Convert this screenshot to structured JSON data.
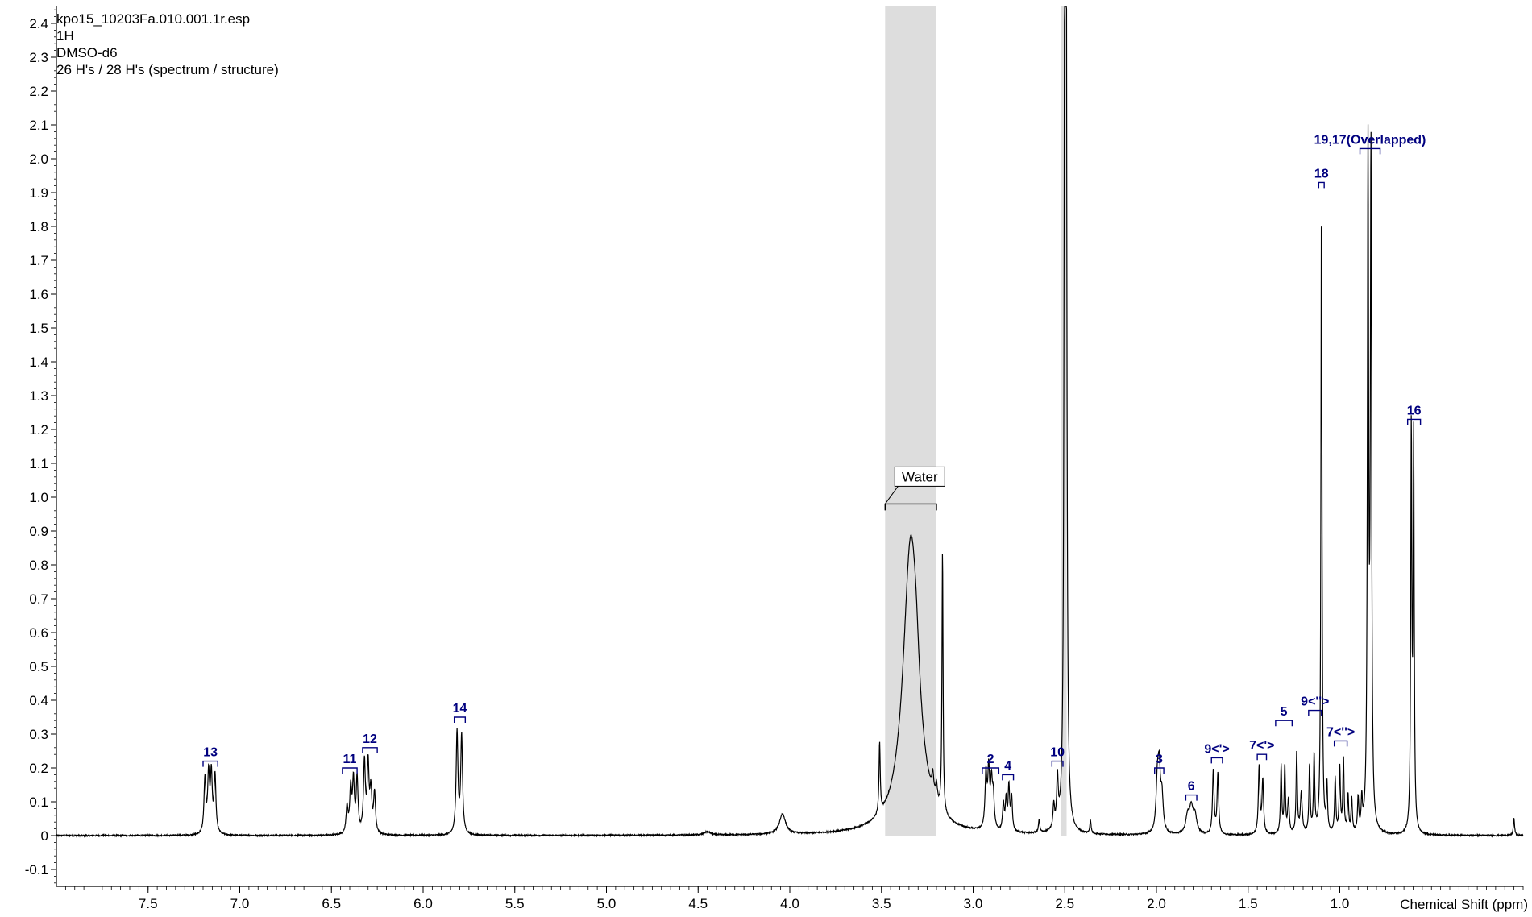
{
  "info": {
    "lines": [
      "kpo15_10203Fa.010.001.1r.esp",
      "1H",
      "DMSO-d6",
      "26 H's / 28 H's (spectrum / structure)"
    ]
  },
  "colors": {
    "spectrum": "#000000",
    "labels": "#00007f",
    "region": "#dddddd",
    "axis": "#000000"
  },
  "chart_data": {
    "type": "line",
    "title": "",
    "xlabel": "Chemical Shift (ppm)",
    "ylabel": "",
    "x_reversed": true,
    "xlim": [
      8.0,
      0.0
    ],
    "ylim": [
      -0.15,
      2.45
    ],
    "x_ticks": [
      "7.5",
      "7.0",
      "6.5",
      "6.0",
      "5.5",
      "5.0",
      "4.5",
      "4.0",
      "3.5",
      "3.0",
      "2.5",
      "2.0",
      "1.5",
      "1.0"
    ],
    "y_ticks": [
      "-0.1",
      "0",
      "0.1",
      "0.2",
      "0.3",
      "0.4",
      "0.5",
      "0.6",
      "0.7",
      "0.8",
      "0.9",
      "1.0",
      "1.1",
      "1.2",
      "1.3",
      "1.4",
      "1.5",
      "1.6",
      "1.7",
      "1.8",
      "1.9",
      "2.0",
      "2.1",
      "2.2",
      "2.3",
      "2.4"
    ],
    "shaded_regions": [
      {
        "from": 3.48,
        "to": 3.2
      },
      {
        "from": 2.52,
        "to": 2.49
      }
    ],
    "peaks": [
      {
        "x": 7.19,
        "y": 0.16,
        "w": 0.006
      },
      {
        "x": 7.17,
        "y": 0.17,
        "w": 0.006
      },
      {
        "x": 7.155,
        "y": 0.17,
        "w": 0.006
      },
      {
        "x": 7.135,
        "y": 0.17,
        "w": 0.006
      },
      {
        "x": 6.415,
        "y": 0.08,
        "w": 0.006
      },
      {
        "x": 6.395,
        "y": 0.13,
        "w": 0.006
      },
      {
        "x": 6.38,
        "y": 0.15,
        "w": 0.006
      },
      {
        "x": 6.36,
        "y": 0.16,
        "w": 0.006
      },
      {
        "x": 6.32,
        "y": 0.21,
        "w": 0.006
      },
      {
        "x": 6.3,
        "y": 0.2,
        "w": 0.006
      },
      {
        "x": 6.285,
        "y": 0.12,
        "w": 0.006
      },
      {
        "x": 6.265,
        "y": 0.12,
        "w": 0.006
      },
      {
        "x": 5.815,
        "y": 0.3,
        "w": 0.006
      },
      {
        "x": 5.79,
        "y": 0.29,
        "w": 0.006
      },
      {
        "x": 4.45,
        "y": 0.01,
        "w": 0.02
      },
      {
        "x": 4.04,
        "y": 0.06,
        "w": 0.02
      },
      {
        "x": 3.51,
        "y": 0.21,
        "w": 0.004
      },
      {
        "x": 3.34,
        "y": 0.86,
        "w": 0.05
      },
      {
        "x": 3.31,
        "y": 0.08,
        "w": 0.02
      },
      {
        "x": 3.22,
        "y": 0.06,
        "w": 0.006
      },
      {
        "x": 3.2,
        "y": 0.05,
        "w": 0.006
      },
      {
        "x": 3.167,
        "y": 0.77,
        "w": 0.0035
      },
      {
        "x": 2.93,
        "y": 0.16,
        "w": 0.006
      },
      {
        "x": 2.915,
        "y": 0.17,
        "w": 0.006
      },
      {
        "x": 2.9,
        "y": 0.13,
        "w": 0.006
      },
      {
        "x": 2.89,
        "y": 0.09,
        "w": 0.006
      },
      {
        "x": 2.835,
        "y": 0.08,
        "w": 0.005
      },
      {
        "x": 2.82,
        "y": 0.09,
        "w": 0.005
      },
      {
        "x": 2.805,
        "y": 0.13,
        "w": 0.005
      },
      {
        "x": 2.79,
        "y": 0.1,
        "w": 0.005
      },
      {
        "x": 2.64,
        "y": 0.04,
        "w": 0.004
      },
      {
        "x": 2.56,
        "y": 0.07,
        "w": 0.005
      },
      {
        "x": 2.54,
        "y": 0.14,
        "w": 0.005
      },
      {
        "x": 2.5,
        "y": 2.6,
        "w": 0.0045
      },
      {
        "x": 2.492,
        "y": 2.3,
        "w": 0.004
      },
      {
        "x": 2.36,
        "y": 0.04,
        "w": 0.004
      },
      {
        "x": 1.995,
        "y": 0.14,
        "w": 0.008
      },
      {
        "x": 1.985,
        "y": 0.17,
        "w": 0.008
      },
      {
        "x": 1.97,
        "y": 0.1,
        "w": 0.008
      },
      {
        "x": 1.83,
        "y": 0.05,
        "w": 0.012
      },
      {
        "x": 1.81,
        "y": 0.07,
        "w": 0.012
      },
      {
        "x": 1.79,
        "y": 0.05,
        "w": 0.012
      },
      {
        "x": 1.69,
        "y": 0.19,
        "w": 0.005
      },
      {
        "x": 1.665,
        "y": 0.18,
        "w": 0.005
      },
      {
        "x": 1.44,
        "y": 0.2,
        "w": 0.005
      },
      {
        "x": 1.42,
        "y": 0.16,
        "w": 0.005
      },
      {
        "x": 1.32,
        "y": 0.2,
        "w": 0.004
      },
      {
        "x": 1.3,
        "y": 0.2,
        "w": 0.004
      },
      {
        "x": 1.28,
        "y": 0.1,
        "w": 0.005
      },
      {
        "x": 1.235,
        "y": 0.24,
        "w": 0.004
      },
      {
        "x": 1.21,
        "y": 0.12,
        "w": 0.006
      },
      {
        "x": 1.165,
        "y": 0.2,
        "w": 0.004
      },
      {
        "x": 1.14,
        "y": 0.23,
        "w": 0.004
      },
      {
        "x": 1.1,
        "y": 1.87,
        "w": 0.0035
      },
      {
        "x": 1.07,
        "y": 0.14,
        "w": 0.004
      },
      {
        "x": 1.025,
        "y": 0.16,
        "w": 0.004
      },
      {
        "x": 1.0,
        "y": 0.19,
        "w": 0.004
      },
      {
        "x": 0.98,
        "y": 0.22,
        "w": 0.004
      },
      {
        "x": 0.955,
        "y": 0.11,
        "w": 0.004
      },
      {
        "x": 0.935,
        "y": 0.1,
        "w": 0.004
      },
      {
        "x": 0.9,
        "y": 0.1,
        "w": 0.004
      },
      {
        "x": 0.88,
        "y": 0.09,
        "w": 0.004
      },
      {
        "x": 0.846,
        "y": 1.98,
        "w": 0.004
      },
      {
        "x": 0.83,
        "y": 1.98,
        "w": 0.004
      },
      {
        "x": 0.61,
        "y": 1.18,
        "w": 0.0035
      },
      {
        "x": 0.597,
        "y": 1.14,
        "w": 0.0035
      },
      {
        "x": 0.05,
        "y": 0.05,
        "w": 0.004
      }
    ],
    "annotations": [
      {
        "label": "13",
        "from": 7.2,
        "to": 7.12,
        "y": 0.22
      },
      {
        "label": "11",
        "from": 6.44,
        "to": 6.36,
        "y": 0.2
      },
      {
        "label": "12",
        "from": 6.33,
        "to": 6.25,
        "y": 0.26
      },
      {
        "label": "14",
        "from": 5.83,
        "to": 5.77,
        "y": 0.35
      },
      {
        "label": "2",
        "from": 2.95,
        "to": 2.86,
        "y": 0.2
      },
      {
        "label": "4",
        "from": 2.84,
        "to": 2.78,
        "y": 0.18
      },
      {
        "label": "10",
        "from": 2.57,
        "to": 2.51,
        "y": 0.22
      },
      {
        "label": "3",
        "from": 2.01,
        "to": 1.96,
        "y": 0.2
      },
      {
        "label": "6",
        "from": 1.84,
        "to": 1.78,
        "y": 0.12
      },
      {
        "label": "9<'>",
        "from": 1.7,
        "to": 1.64,
        "y": 0.23
      },
      {
        "label": "7<'>",
        "from": 1.45,
        "to": 1.4,
        "y": 0.24
      },
      {
        "label": "5",
        "from": 1.35,
        "to": 1.26,
        "y": 0.34
      },
      {
        "label": "9<''>",
        "from": 1.17,
        "to": 1.1,
        "y": 0.37
      },
      {
        "label": "7<''>",
        "from": 1.03,
        "to": 0.96,
        "y": 0.28
      },
      {
        "label": "18",
        "from": 1.115,
        "to": 1.085,
        "y": 1.93
      },
      {
        "label": "19,17(Overlapped)",
        "from": 0.89,
        "to": 0.78,
        "y": 2.03
      },
      {
        "label": "16",
        "from": 0.63,
        "to": 0.56,
        "y": 1.23
      }
    ],
    "callouts": [
      {
        "label": "Water",
        "from": 3.48,
        "to": 3.2,
        "y": 0.98
      }
    ]
  }
}
